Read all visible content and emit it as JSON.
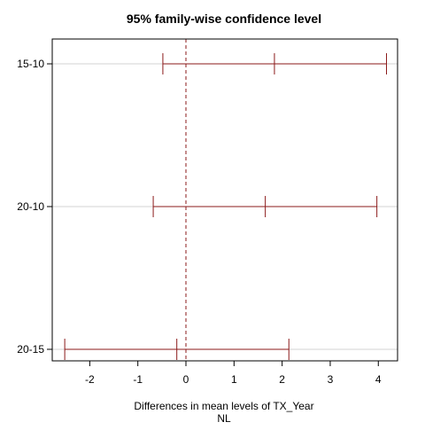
{
  "chart_data": {
    "type": "interval",
    "title": "95% family-wise confidence level",
    "xlabel": "Differences in mean levels of TX_Year",
    "xlabel_sub": "NL",
    "ylabel": "",
    "xlim": [
      -2.78,
      4.4
    ],
    "xticks": [
      -2,
      -1,
      0,
      1,
      2,
      3,
      4
    ],
    "reference_line": 0,
    "grid": "horizontal at each comparison",
    "colors": {
      "interval": "#8b1a1a",
      "reference": "#8b1a1a",
      "grid": "#d3d3d3",
      "frame": "#000000"
    },
    "comparisons": [
      {
        "label": "15-10",
        "lwr": -0.48,
        "diff": 1.84,
        "upr": 4.17
      },
      {
        "label": "20-10",
        "lwr": -0.68,
        "diff": 1.65,
        "upr": 3.97
      },
      {
        "label": "20-15",
        "lwr": -2.52,
        "diff": -0.19,
        "upr": 2.14
      }
    ]
  }
}
